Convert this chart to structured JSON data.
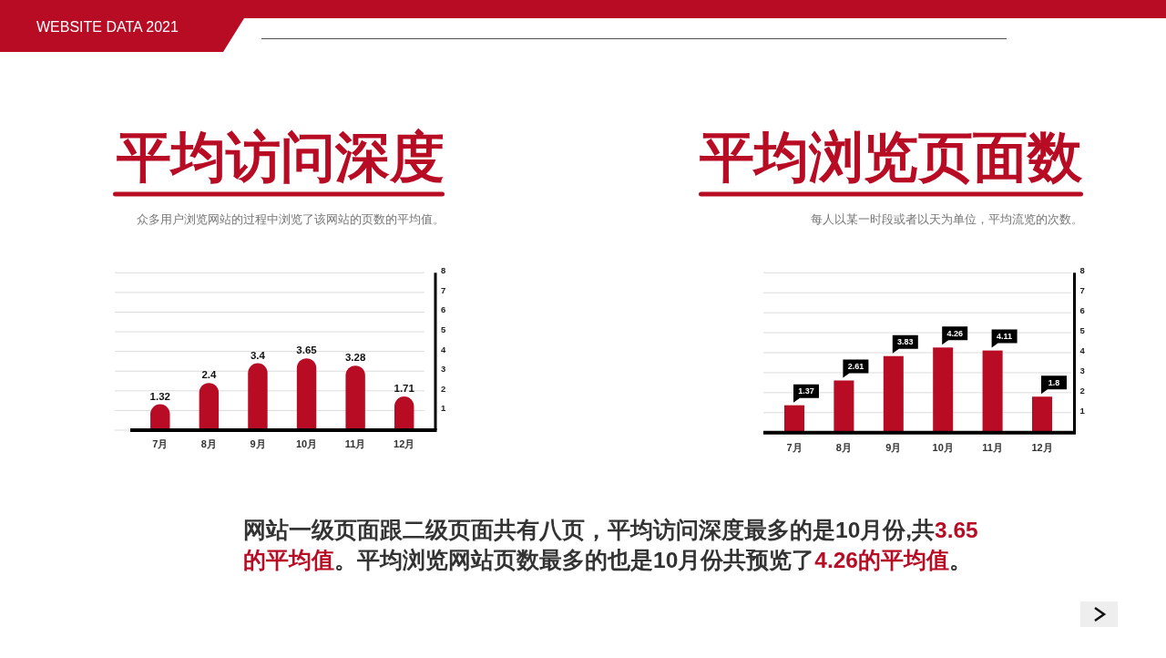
{
  "chart_data": [
    {
      "type": "bar",
      "title": "平均访问深度",
      "subtitle": "众多用户浏览网站的过程中浏览了该网站的页数的平均值。",
      "annotations": [
        "WEBSITE DATA 2021"
      ],
      "categories": [
        "7月",
        "8月",
        "9月",
        "10月",
        "11月",
        "12月"
      ],
      "values": [
        1.32,
        2.4,
        3.4,
        3.65,
        3.28,
        1.71
      ],
      "color": "#b80c25",
      "ylim": [
        0,
        8
      ],
      "yticks": [
        {
          "value": 0,
          "label": null
        },
        1,
        2,
        3,
        4,
        5,
        6,
        7,
        8
      ],
      "grid": "y",
      "data_labels": true
    },
    {
      "type": "bar",
      "title": "平均浏览页面数",
      "subtitle": "每人以某一时段或者以天为单位，平均流览的次数。",
      "annotations": [
        "网站一级页面跟二级页面共有八页，平均访问深度最多的是10月份,共",
        "3.65",
        "的平均值",
        "。平均浏览网站页数最多的也是10月份共预览了",
        "4.26的平均值",
        "。"
      ],
      "categories": [
        "7月",
        "8月",
        "9月",
        "10月",
        "11月",
        "12月"
      ],
      "values": [
        1.37,
        2.61,
        3.83,
        4.26,
        4.11,
        1.8
      ],
      "color": "#b80c25",
      "ylim": [
        0,
        8
      ],
      "yticks": [
        {
          "value": 0,
          "label": null
        },
        1,
        2,
        3,
        4,
        5,
        6,
        7,
        8
      ],
      "grid": "y",
      "data_labels": true
    }
  ]
}
